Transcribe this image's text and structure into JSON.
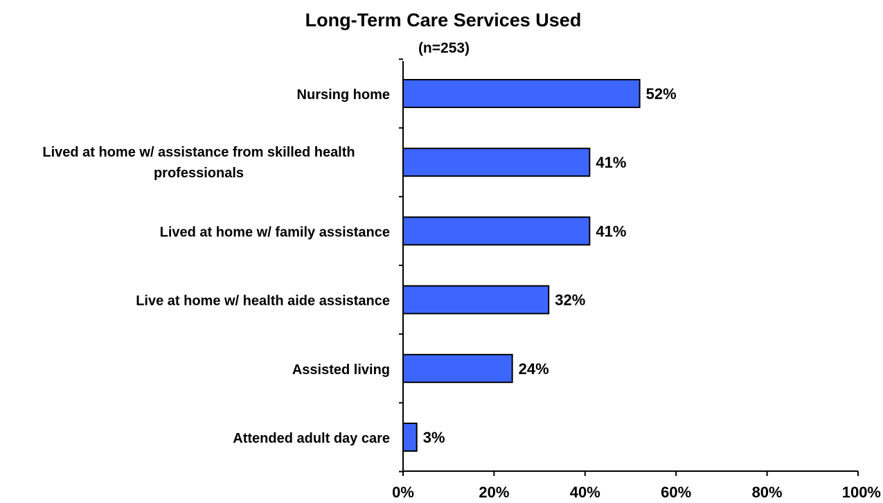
{
  "chart_data": {
    "type": "bar",
    "orientation": "horizontal",
    "title": "Long-Term Care Services Used",
    "subtitle": "(n=253)",
    "categories": [
      "Nursing home",
      "Lived at home w/ assistance from skilled health professionals",
      "Lived at home w/ family assistance",
      "Live at home w/ health aide assistance",
      "Assisted living",
      "Attended adult day care"
    ],
    "category_lines": [
      [
        "Nursing home"
      ],
      [
        "Lived at home w/ assistance from skilled health",
        "professionals"
      ],
      [
        "Lived at home w/ family assistance"
      ],
      [
        "Live at home w/ health aide assistance"
      ],
      [
        "Assisted living"
      ],
      [
        "Attended adult day care"
      ]
    ],
    "values": [
      52,
      41,
      41,
      32,
      24,
      3
    ],
    "data_labels": [
      "52%",
      "41%",
      "41%",
      "32%",
      "24%",
      "3%"
    ],
    "xlim": [
      0,
      100
    ],
    "x_ticks": [
      0,
      20,
      40,
      60,
      80,
      100
    ],
    "x_tick_labels": [
      "0%",
      "20%",
      "40%",
      "60%",
      "80%",
      "100%"
    ],
    "xlabel": "",
    "ylabel": "",
    "grid": false,
    "legend": "none",
    "bar_color": "#3d66ff",
    "bar_edge_color": "#000000"
  }
}
